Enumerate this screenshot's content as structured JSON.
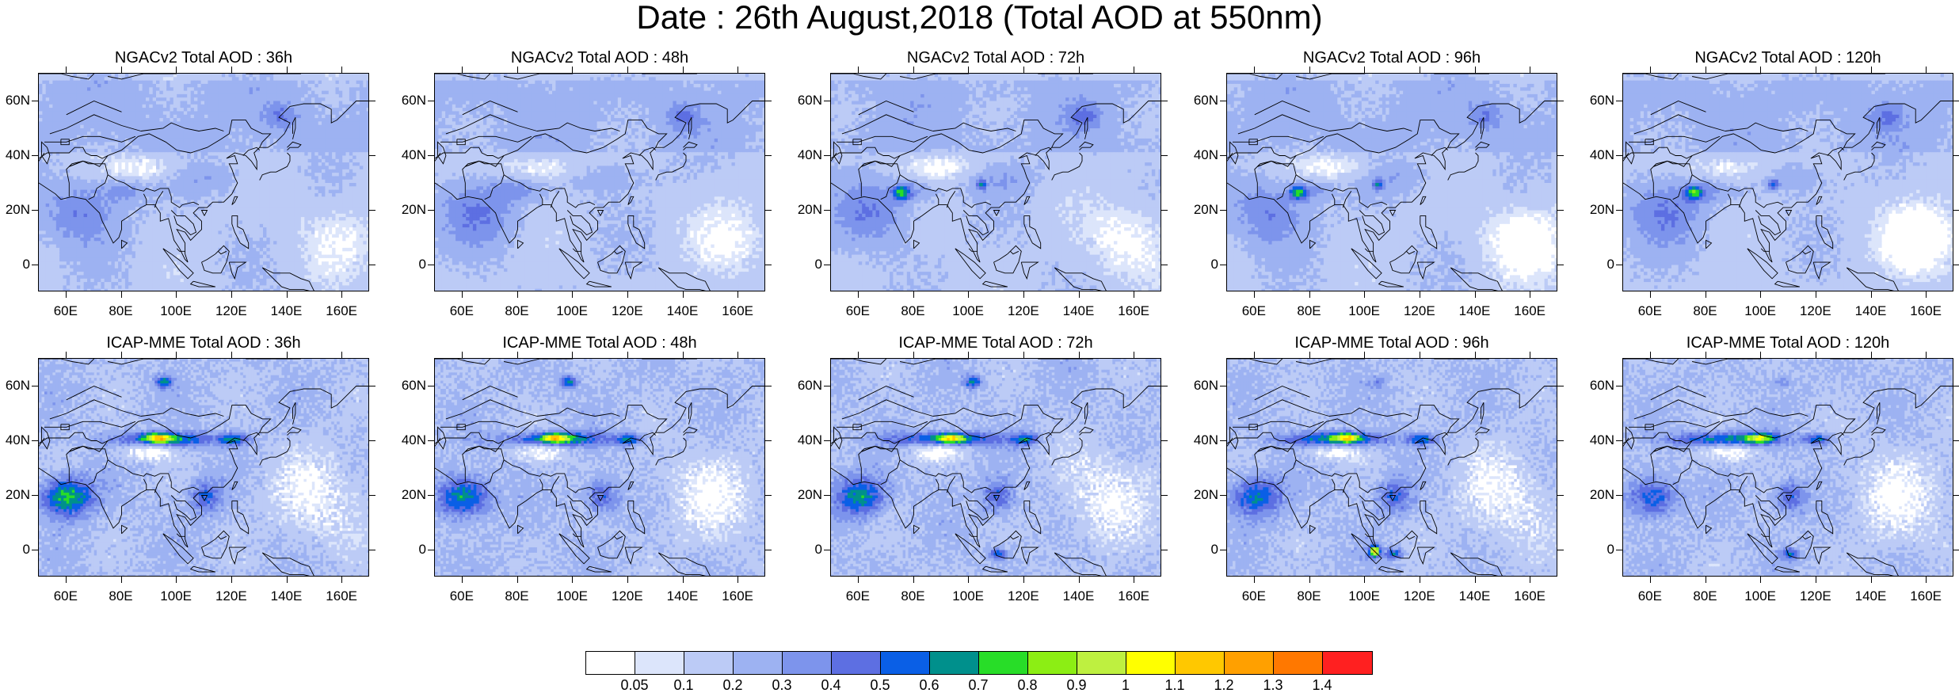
{
  "title": "Date : 26th August,2018 (Total AOD at 550nm)",
  "panels": [
    {
      "title": "NGACv2 Total AOD : 36h",
      "model": "NGACv2",
      "lead": "36h"
    },
    {
      "title": "NGACv2 Total AOD : 48h",
      "model": "NGACv2",
      "lead": "48h"
    },
    {
      "title": "NGACv2 Total AOD : 72h",
      "model": "NGACv2",
      "lead": "72h"
    },
    {
      "title": "NGACv2 Total AOD : 96h",
      "model": "NGACv2",
      "lead": "96h"
    },
    {
      "title": "NGACv2 Total AOD : 120h",
      "model": "NGACv2",
      "lead": "120h"
    },
    {
      "title": "ICAP-MME Total AOD : 36h",
      "model": "ICAP-MME",
      "lead": "36h"
    },
    {
      "title": "ICAP-MME Total AOD : 48h",
      "model": "ICAP-MME",
      "lead": "48h"
    },
    {
      "title": "ICAP-MME Total AOD : 72h",
      "model": "ICAP-MME",
      "lead": "72h"
    },
    {
      "title": "ICAP-MME Total AOD : 96h",
      "model": "ICAP-MME",
      "lead": "96h"
    },
    {
      "title": "ICAP-MME Total AOD : 120h",
      "model": "ICAP-MME",
      "lead": "120h"
    }
  ],
  "axes": {
    "lat_ticks": [
      "60N",
      "40N",
      "20N",
      "0"
    ],
    "lat_values": [
      60,
      40,
      20,
      0
    ],
    "lon_ticks": [
      "60E",
      "80E",
      "100E",
      "120E",
      "140E",
      "160E"
    ],
    "lon_values": [
      60,
      80,
      100,
      120,
      140,
      160
    ],
    "lon_range": [
      50,
      170
    ],
    "lat_range": [
      -10,
      70
    ]
  },
  "colorbar": {
    "labels": [
      "0.05",
      "0.1",
      "0.2",
      "0.3",
      "0.4",
      "0.5",
      "0.6",
      "0.7",
      "0.8",
      "0.9",
      "1",
      "1.1",
      "1.2",
      "1.3",
      "1.4"
    ],
    "colors": [
      "#ffffff",
      "#dce5fb",
      "#bccbf6",
      "#9db2f2",
      "#7d94ec",
      "#5d6fe2",
      "#0a5fe6",
      "#00908c",
      "#28dd28",
      "#8cee14",
      "#bef040",
      "#ffff00",
      "#ffc800",
      "#ffa000",
      "#ff7800",
      "#ff2020"
    ]
  }
}
